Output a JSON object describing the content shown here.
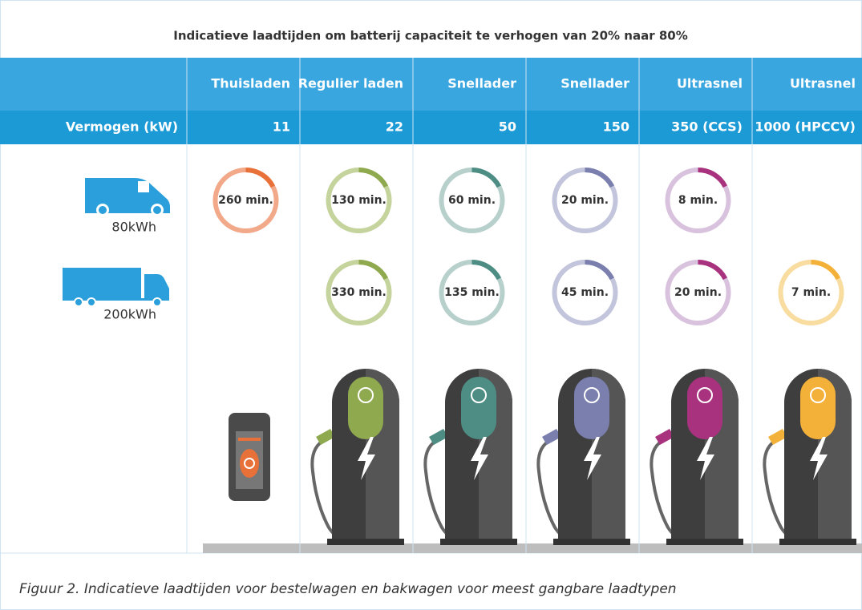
{
  "title": "Indicatieve laadtijden om batterij capaciteit te verhogen van 20% naar 80%",
  "power_label": "Vermogen (kW)",
  "columns": [
    {
      "name": "Thuisladen",
      "power": "11",
      "color": "#e8713a",
      "light": "#f2a98a"
    },
    {
      "name": "Regulier laden",
      "power": "22",
      "color": "#8fa94f",
      "light": "#c5d39d"
    },
    {
      "name": "Snellader",
      "power": "50",
      "color": "#4e8d84",
      "light": "#b7d0cc"
    },
    {
      "name": "Snellader",
      "power": "150",
      "color": "#7a7fae",
      "light": "#c3c5dc"
    },
    {
      "name": "Ultrasnel",
      "power": "350 (CCS)",
      "color": "#a8327d",
      "light": "#d9c2de"
    },
    {
      "name": "Ultrasnel",
      "power": "1000 (HPCCV)",
      "color": "#f4b13a",
      "light": "#f8dca0"
    }
  ],
  "vehicles": [
    {
      "label": "80kWh",
      "times": [
        "260 min.",
        "130 min.",
        "60 min.",
        "20 min.",
        "8 min.",
        null
      ]
    },
    {
      "label": "200kWh",
      "times": [
        null,
        "330 min.",
        "135 min.",
        "45 min.",
        "20 min.",
        "7 min."
      ]
    }
  ],
  "caption": "Figuur 2. Indicatieve laadtijden voor bestelwagen en bakwagen voor meest gangbare laadtypen"
}
